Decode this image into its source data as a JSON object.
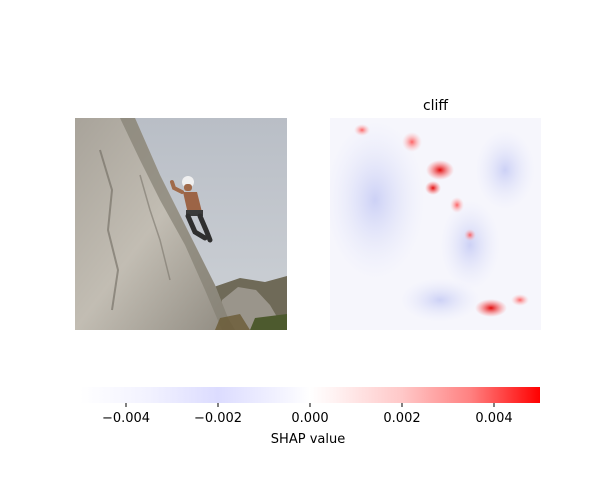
{
  "chart_data": {
    "type": "heatmap",
    "panels": [
      {
        "kind": "photo",
        "title": ""
      },
      {
        "kind": "shap-map",
        "title": "cliff"
      }
    ],
    "colorbar": {
      "label": "SHAP value",
      "range": [
        -0.005,
        0.005
      ],
      "ticks": [
        -0.004,
        -0.002,
        0.0,
        0.002,
        0.004
      ],
      "tick_labels": [
        "−0.004",
        "−0.002",
        "0.000",
        "0.002",
        "0.004"
      ],
      "negative_color": "#0000ff",
      "neutral_color": "#ffffff",
      "positive_color": "#ff0000"
    }
  }
}
